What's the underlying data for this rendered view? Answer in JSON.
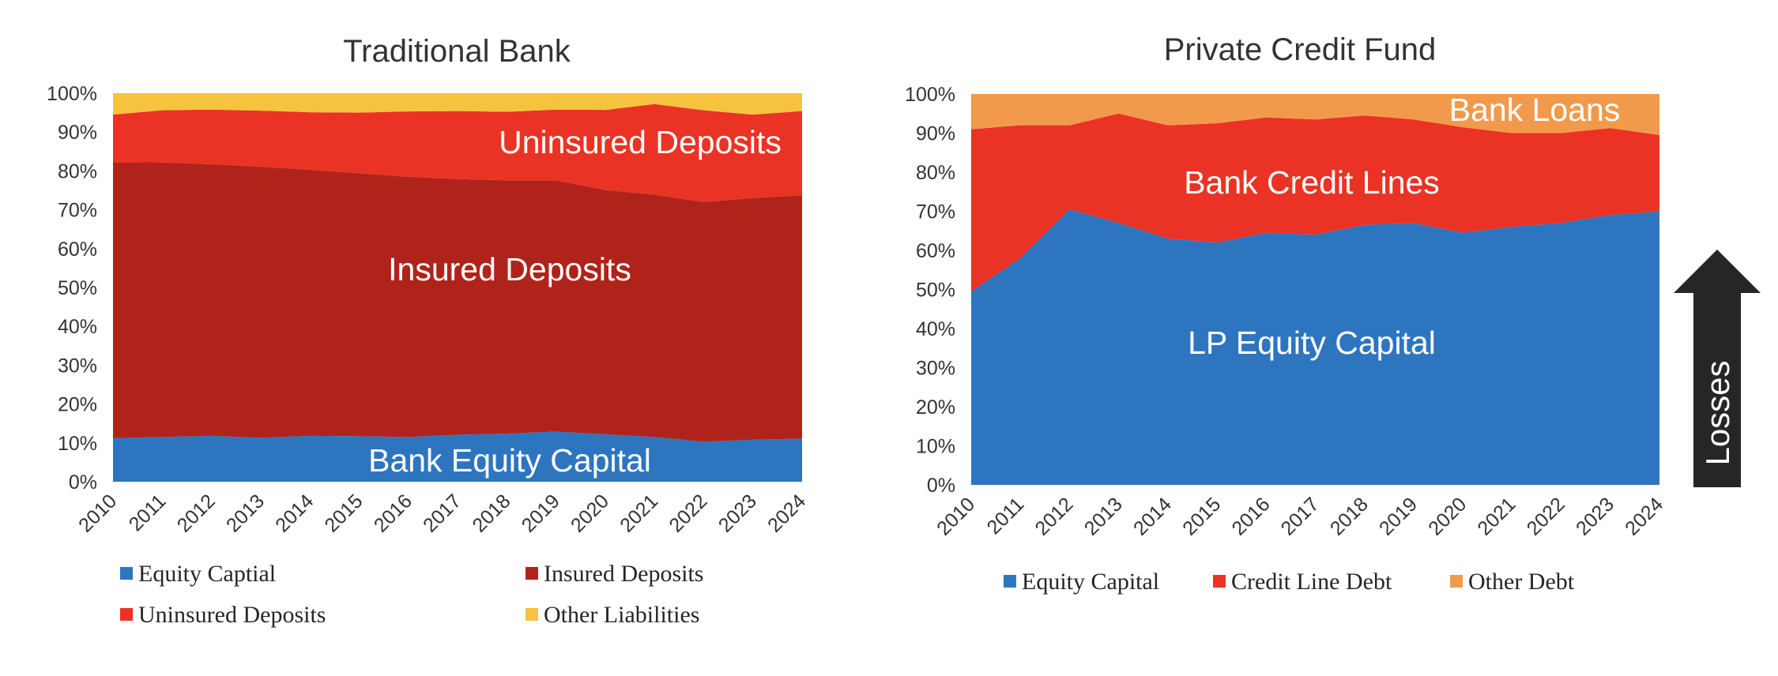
{
  "chart_data": [
    {
      "type": "area",
      "stacked": true,
      "normalized": true,
      "title": "Traditional Bank",
      "xlabel": "",
      "ylabel": "",
      "ylim": [
        0,
        100
      ],
      "y_ticks": [
        "0%",
        "10%",
        "20%",
        "30%",
        "40%",
        "50%",
        "60%",
        "70%",
        "80%",
        "90%",
        "100%"
      ],
      "x": [
        "2010",
        "2011",
        "2012",
        "2013",
        "2014",
        "2015",
        "2016",
        "2017",
        "2018",
        "2019",
        "2020",
        "2021",
        "2022",
        "2023",
        "2024"
      ],
      "grid": false,
      "legend_position": "bottom",
      "series": [
        {
          "name": "Equity Captial",
          "color": "#2e75c0",
          "values": [
            11.2,
            11.5,
            11.8,
            11.3,
            11.8,
            11.7,
            11.5,
            12.1,
            12.4,
            12.9,
            12.2,
            11.5,
            10.3,
            10.8,
            11.1
          ]
        },
        {
          "name": "Insured Deposits",
          "color": "#b0231a",
          "values": [
            71.1,
            70.7,
            69.9,
            69.8,
            68.5,
            67.7,
            67.0,
            65.8,
            65.2,
            64.7,
            62.9,
            62.4,
            61.7,
            62.2,
            62.6
          ]
        },
        {
          "name": "Uninsured Deposits",
          "color": "#ea3324",
          "values": [
            12.2,
            13.4,
            14.1,
            14.4,
            14.8,
            15.6,
            16.8,
            17.5,
            17.6,
            18.2,
            20.6,
            23.3,
            23.6,
            21.5,
            21.7
          ]
        },
        {
          "name": "Other Liabilities",
          "color": "#f6c33f",
          "values": [
            5.5,
            4.4,
            4.2,
            4.5,
            4.9,
            5.0,
            4.7,
            4.6,
            4.8,
            4.2,
            4.3,
            2.8,
            4.4,
            5.5,
            4.6
          ]
        }
      ],
      "annotations": [
        {
          "text": "Uninsured Deposits"
        },
        {
          "text": "Insured Deposits"
        },
        {
          "text": "Bank Equity Capital"
        }
      ]
    },
    {
      "type": "area",
      "stacked": true,
      "normalized": true,
      "title": "Private Credit Fund",
      "xlabel": "",
      "ylabel": "",
      "ylim": [
        0,
        100
      ],
      "y_ticks": [
        "0%",
        "10%",
        "20%",
        "30%",
        "40%",
        "50%",
        "60%",
        "70%",
        "80%",
        "90%",
        "100%"
      ],
      "x": [
        "2010",
        "2011",
        "2012",
        "2013",
        "2014",
        "2015",
        "2016",
        "2017",
        "2018",
        "2019",
        "2020",
        "2021",
        "2022",
        "2023",
        "2024"
      ],
      "grid": false,
      "legend_position": "bottom",
      "series": [
        {
          "name": "Equity Capital",
          "color": "#2e75c0",
          "values": [
            49.5,
            58.0,
            70.5,
            67.0,
            63.0,
            62.0,
            64.5,
            64.0,
            66.5,
            67.0,
            64.5,
            66.0,
            67.0,
            69.0,
            70.0
          ]
        },
        {
          "name": "Credit Line Debt",
          "color": "#ea3324",
          "values": [
            41.5,
            34.0,
            21.5,
            28.0,
            29.0,
            30.5,
            29.5,
            29.5,
            28.0,
            26.5,
            27.0,
            24.0,
            23.0,
            22.3,
            19.5
          ]
        },
        {
          "name": "Other Debt",
          "color": "#f19a4c",
          "values": [
            9.0,
            8.0,
            8.0,
            5.0,
            8.0,
            7.5,
            6.0,
            6.5,
            5.5,
            6.5,
            8.5,
            10.0,
            10.0,
            8.7,
            10.5
          ]
        }
      ],
      "annotations": [
        {
          "text": "Bank Loans"
        },
        {
          "text": "Bank Credit Lines"
        },
        {
          "text": "LP Equity Capital"
        }
      ],
      "side_arrow": {
        "text": "Losses",
        "direction": "up",
        "color": "#262626"
      }
    }
  ]
}
